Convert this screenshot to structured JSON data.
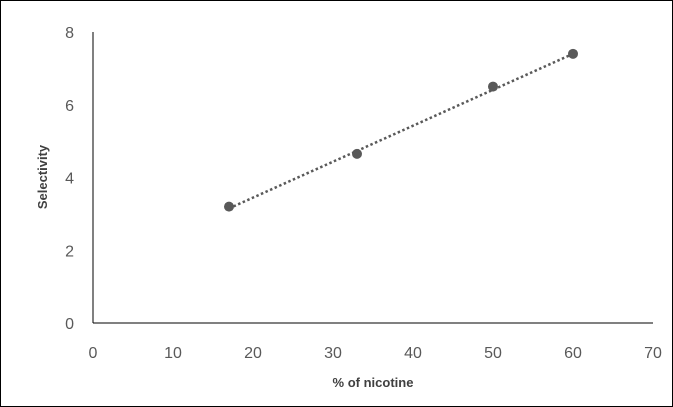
{
  "chart_data": {
    "type": "scatter",
    "title": "",
    "xlabel": "% of nicotine",
    "ylabel": "Selectivity",
    "xlim": [
      0,
      70
    ],
    "ylim": [
      0,
      8
    ],
    "x_ticks": [
      "0",
      "10",
      "20",
      "30",
      "40",
      "50",
      "60",
      "70"
    ],
    "y_ticks": [
      "0",
      "2",
      "4",
      "6",
      "8"
    ],
    "grid": false,
    "legend": "none",
    "series": [
      {
        "x": [
          17,
          33,
          50,
          60
        ],
        "y": [
          3.2,
          4.65,
          6.5,
          7.4
        ],
        "marker_color": "#595959"
      }
    ],
    "trendline": {
      "style": "dotted",
      "color": "#595959",
      "from": [
        17,
        3.15
      ],
      "to": [
        60,
        7.4
      ]
    }
  }
}
